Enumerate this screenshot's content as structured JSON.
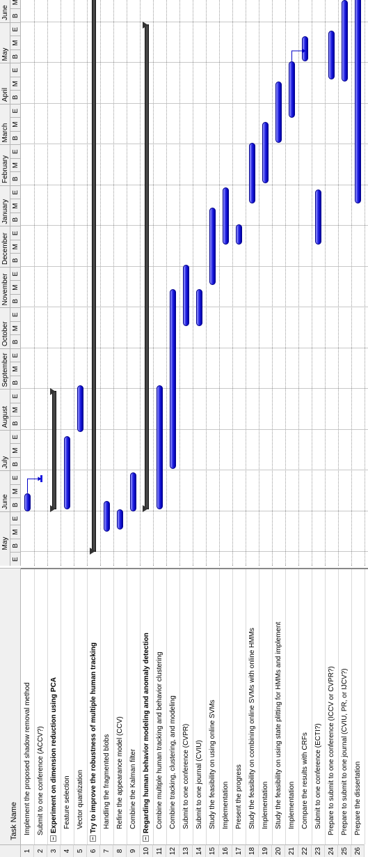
{
  "header": {
    "task_name": "Task Name"
  },
  "months": [
    "May",
    "June",
    "July",
    "August",
    "September",
    "October",
    "November",
    "December",
    "January",
    "February",
    "March",
    "April",
    "May",
    "June"
  ],
  "subcols": [
    "B",
    "M",
    "E"
  ],
  "first_subcol": "E",
  "tasks": [
    {
      "num": "1",
      "name": "Implement the proposed shadow removal method",
      "indent": 1,
      "bold": false,
      "toggle": ""
    },
    {
      "num": "2",
      "name": "Submit to one conference (ACCV?)",
      "indent": 1,
      "bold": false,
      "toggle": ""
    },
    {
      "num": "3",
      "name": "Experiment on dimension reduction using PCA",
      "indent": 0,
      "bold": true,
      "toggle": "−"
    },
    {
      "num": "4",
      "name": "Feature selection",
      "indent": 2,
      "bold": false,
      "toggle": ""
    },
    {
      "num": "5",
      "name": "Vector quantization",
      "indent": 2,
      "bold": false,
      "toggle": ""
    },
    {
      "num": "6",
      "name": "Try to improve the robustness of multiple human tracking",
      "indent": 0,
      "bold": true,
      "toggle": "−"
    },
    {
      "num": "7",
      "name": "Handling the fragmented blobs",
      "indent": 2,
      "bold": false,
      "toggle": ""
    },
    {
      "num": "8",
      "name": "Refine the appearance model (CCV)",
      "indent": 2,
      "bold": false,
      "toggle": ""
    },
    {
      "num": "9",
      "name": "Combine the Kalman filter",
      "indent": 2,
      "bold": false,
      "toggle": ""
    },
    {
      "num": "10",
      "name": "Regarding human behavior modeling and anomaly detection",
      "indent": 0,
      "bold": true,
      "toggle": "−"
    },
    {
      "num": "11",
      "name": "Combine multiple human tracking and behavior clustering",
      "indent": 2,
      "bold": false,
      "toggle": ""
    },
    {
      "num": "12",
      "name": "Combine tracking, clustering, and modeling",
      "indent": 2,
      "bold": false,
      "toggle": ""
    },
    {
      "num": "13",
      "name": "Submit to one conference (CVPR)",
      "indent": 2,
      "bold": false,
      "toggle": ""
    },
    {
      "num": "14",
      "name": "Submit to one journal (CVIU)",
      "indent": 2,
      "bold": false,
      "toggle": ""
    },
    {
      "num": "15",
      "name": "Study the feasibility on using online SVMs",
      "indent": 2,
      "bold": false,
      "toggle": ""
    },
    {
      "num": "16",
      "name": "Implementation",
      "indent": 2,
      "bold": false,
      "toggle": ""
    },
    {
      "num": "17",
      "name": "Present the progress",
      "indent": 2,
      "bold": false,
      "toggle": ""
    },
    {
      "num": "18",
      "name": "Study the feasibility on combining online SVMs with online HMMs",
      "indent": 2,
      "bold": false,
      "toggle": ""
    },
    {
      "num": "19",
      "name": "Implementation",
      "indent": 2,
      "bold": false,
      "toggle": ""
    },
    {
      "num": "20",
      "name": "Study the feasibility on using state plitting for HMMs and implement",
      "indent": 2,
      "bold": false,
      "toggle": ""
    },
    {
      "num": "21",
      "name": "Implementation",
      "indent": 2,
      "bold": false,
      "toggle": ""
    },
    {
      "num": "22",
      "name": "Compare the results with CRFs",
      "indent": 2,
      "bold": false,
      "toggle": ""
    },
    {
      "num": "23",
      "name": "Submit to one conference (ECTI?)",
      "indent": 2,
      "bold": false,
      "toggle": ""
    },
    {
      "num": "24",
      "name": "Prepare to submit to one conference (ICCV or CVPR?)",
      "indent": 1,
      "bold": false,
      "toggle": ""
    },
    {
      "num": "25",
      "name": "Prepare to submit to one journal (CVIU, PR, or IJCV?)",
      "indent": 1,
      "bold": false,
      "toggle": ""
    },
    {
      "num": "26",
      "name": "Prepare the dissertation",
      "indent": 1,
      "bold": false,
      "toggle": ""
    }
  ],
  "bars": [
    {
      "row": 1,
      "type": "task",
      "start": 1.0,
      "end": 1.45
    },
    {
      "row": 2,
      "type": "milestone",
      "start": 1.8
    },
    {
      "row": 3,
      "type": "summary",
      "start": 1.05,
      "end": 3.95
    },
    {
      "row": 4,
      "type": "task",
      "start": 1.05,
      "end": 2.85
    },
    {
      "row": 5,
      "type": "task",
      "start": 2.95,
      "end": 4.1
    },
    {
      "row": 6,
      "type": "summary",
      "start": 0.0,
      "end": 14.9
    },
    {
      "row": 7,
      "type": "task",
      "start": 0.5,
      "end": 1.25
    },
    {
      "row": 8,
      "type": "task",
      "start": 0.55,
      "end": 1.05
    },
    {
      "row": 9,
      "type": "task",
      "start": 1.0,
      "end": 1.95
    },
    {
      "row": 10,
      "type": "summary",
      "start": 1.05,
      "end": 12.95
    },
    {
      "row": 11,
      "type": "task",
      "start": 1.05,
      "end": 4.1
    },
    {
      "row": 12,
      "type": "task",
      "start": 2.05,
      "end": 6.45
    },
    {
      "row": 13,
      "type": "task",
      "start": 5.55,
      "end": 7.05
    },
    {
      "row": 14,
      "type": "task",
      "start": 5.55,
      "end": 6.45
    },
    {
      "row": 15,
      "type": "task",
      "start": 6.55,
      "end": 8.45
    },
    {
      "row": 16,
      "type": "task",
      "start": 7.55,
      "end": 8.95
    },
    {
      "row": 17,
      "type": "task",
      "start": 7.55,
      "end": 8.05
    },
    {
      "row": 18,
      "type": "task",
      "start": 8.55,
      "end": 10.05
    },
    {
      "row": 19,
      "type": "task",
      "start": 9.05,
      "end": 10.55
    },
    {
      "row": 20,
      "type": "task",
      "start": 10.05,
      "end": 11.55
    },
    {
      "row": 21,
      "type": "task",
      "start": 10.65,
      "end": 12.05
    },
    {
      "row": 22,
      "type": "task",
      "start": 12.05,
      "end": 12.65
    },
    {
      "row": 23,
      "type": "task",
      "start": 7.55,
      "end": 8.9
    },
    {
      "row": 24,
      "type": "task",
      "start": 11.6,
      "end": 12.8
    },
    {
      "row": 25,
      "type": "task",
      "start": 11.55,
      "end": 13.55
    },
    {
      "row": 26,
      "type": "task",
      "start": 8.55,
      "end": 14.9
    }
  ]
}
